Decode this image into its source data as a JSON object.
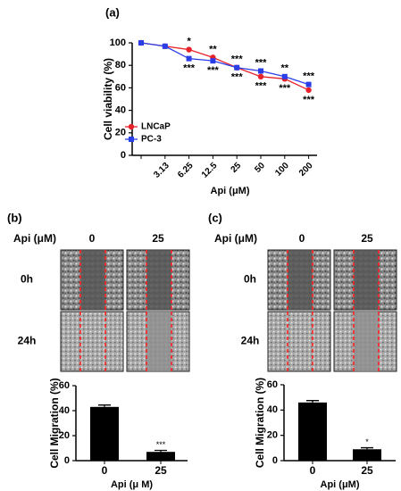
{
  "chart_data": [
    {
      "type": "line",
      "title": "(a)",
      "y_label": "Cell viability (%)",
      "x_label": "Api (μM)",
      "categories": [
        null,
        "3.13",
        "6.25",
        "12.5",
        "25",
        "50",
        "100",
        "200"
      ],
      "series": [
        {
          "name": "LNCaP",
          "color": "#e8222a",
          "marker": "circle",
          "values": [
            100,
            97,
            94,
            87,
            78,
            70,
            68,
            58
          ]
        },
        {
          "name": "PC-3",
          "color": "#2a3ee8",
          "marker": "square",
          "values": [
            100,
            97,
            86,
            84,
            78,
            75,
            70,
            63
          ]
        }
      ],
      "annotations_top": [
        null,
        null,
        "*",
        "**",
        "***",
        "***",
        "**",
        "***"
      ],
      "annotations_bottom": [
        null,
        null,
        "***",
        "***",
        "***",
        "***",
        "***",
        "***"
      ],
      "ylim": [
        0,
        100
      ],
      "yticks": [
        0,
        20,
        40,
        60,
        80,
        100
      ],
      "legend": "lower left"
    },
    {
      "type": "bar",
      "y_label": "Cell  Migration (%)",
      "x_label": "Api (μ M)",
      "categories": [
        "0",
        "25"
      ],
      "values": [
        43,
        7
      ],
      "errors": [
        1.5,
        1.2
      ],
      "color": "#000000",
      "annotations": [
        null,
        "***"
      ],
      "ylim": [
        0,
        60
      ],
      "yticks": [
        0,
        20,
        40,
        60
      ]
    },
    {
      "type": "bar",
      "y_label": "Cell Migration (%)",
      "x_label": "Api (μM)",
      "categories": [
        "0",
        "25"
      ],
      "values": [
        46,
        9
      ],
      "errors": [
        1.5,
        1.2
      ],
      "color": "#000000",
      "annotations": [
        null,
        "*"
      ],
      "ylim": [
        0,
        60
      ],
      "yticks": [
        0,
        20,
        40,
        60
      ]
    }
  ],
  "panels": [
    {
      "label": "(b)",
      "dose_label": "Api (μM)",
      "doses": [
        "0",
        "25"
      ],
      "times": [
        "0h",
        "24h"
      ]
    },
    {
      "label": "(c)",
      "dose_label": "Api (μM)",
      "doses": [
        "0",
        "25"
      ],
      "times": [
        "0h",
        "24h"
      ]
    }
  ]
}
